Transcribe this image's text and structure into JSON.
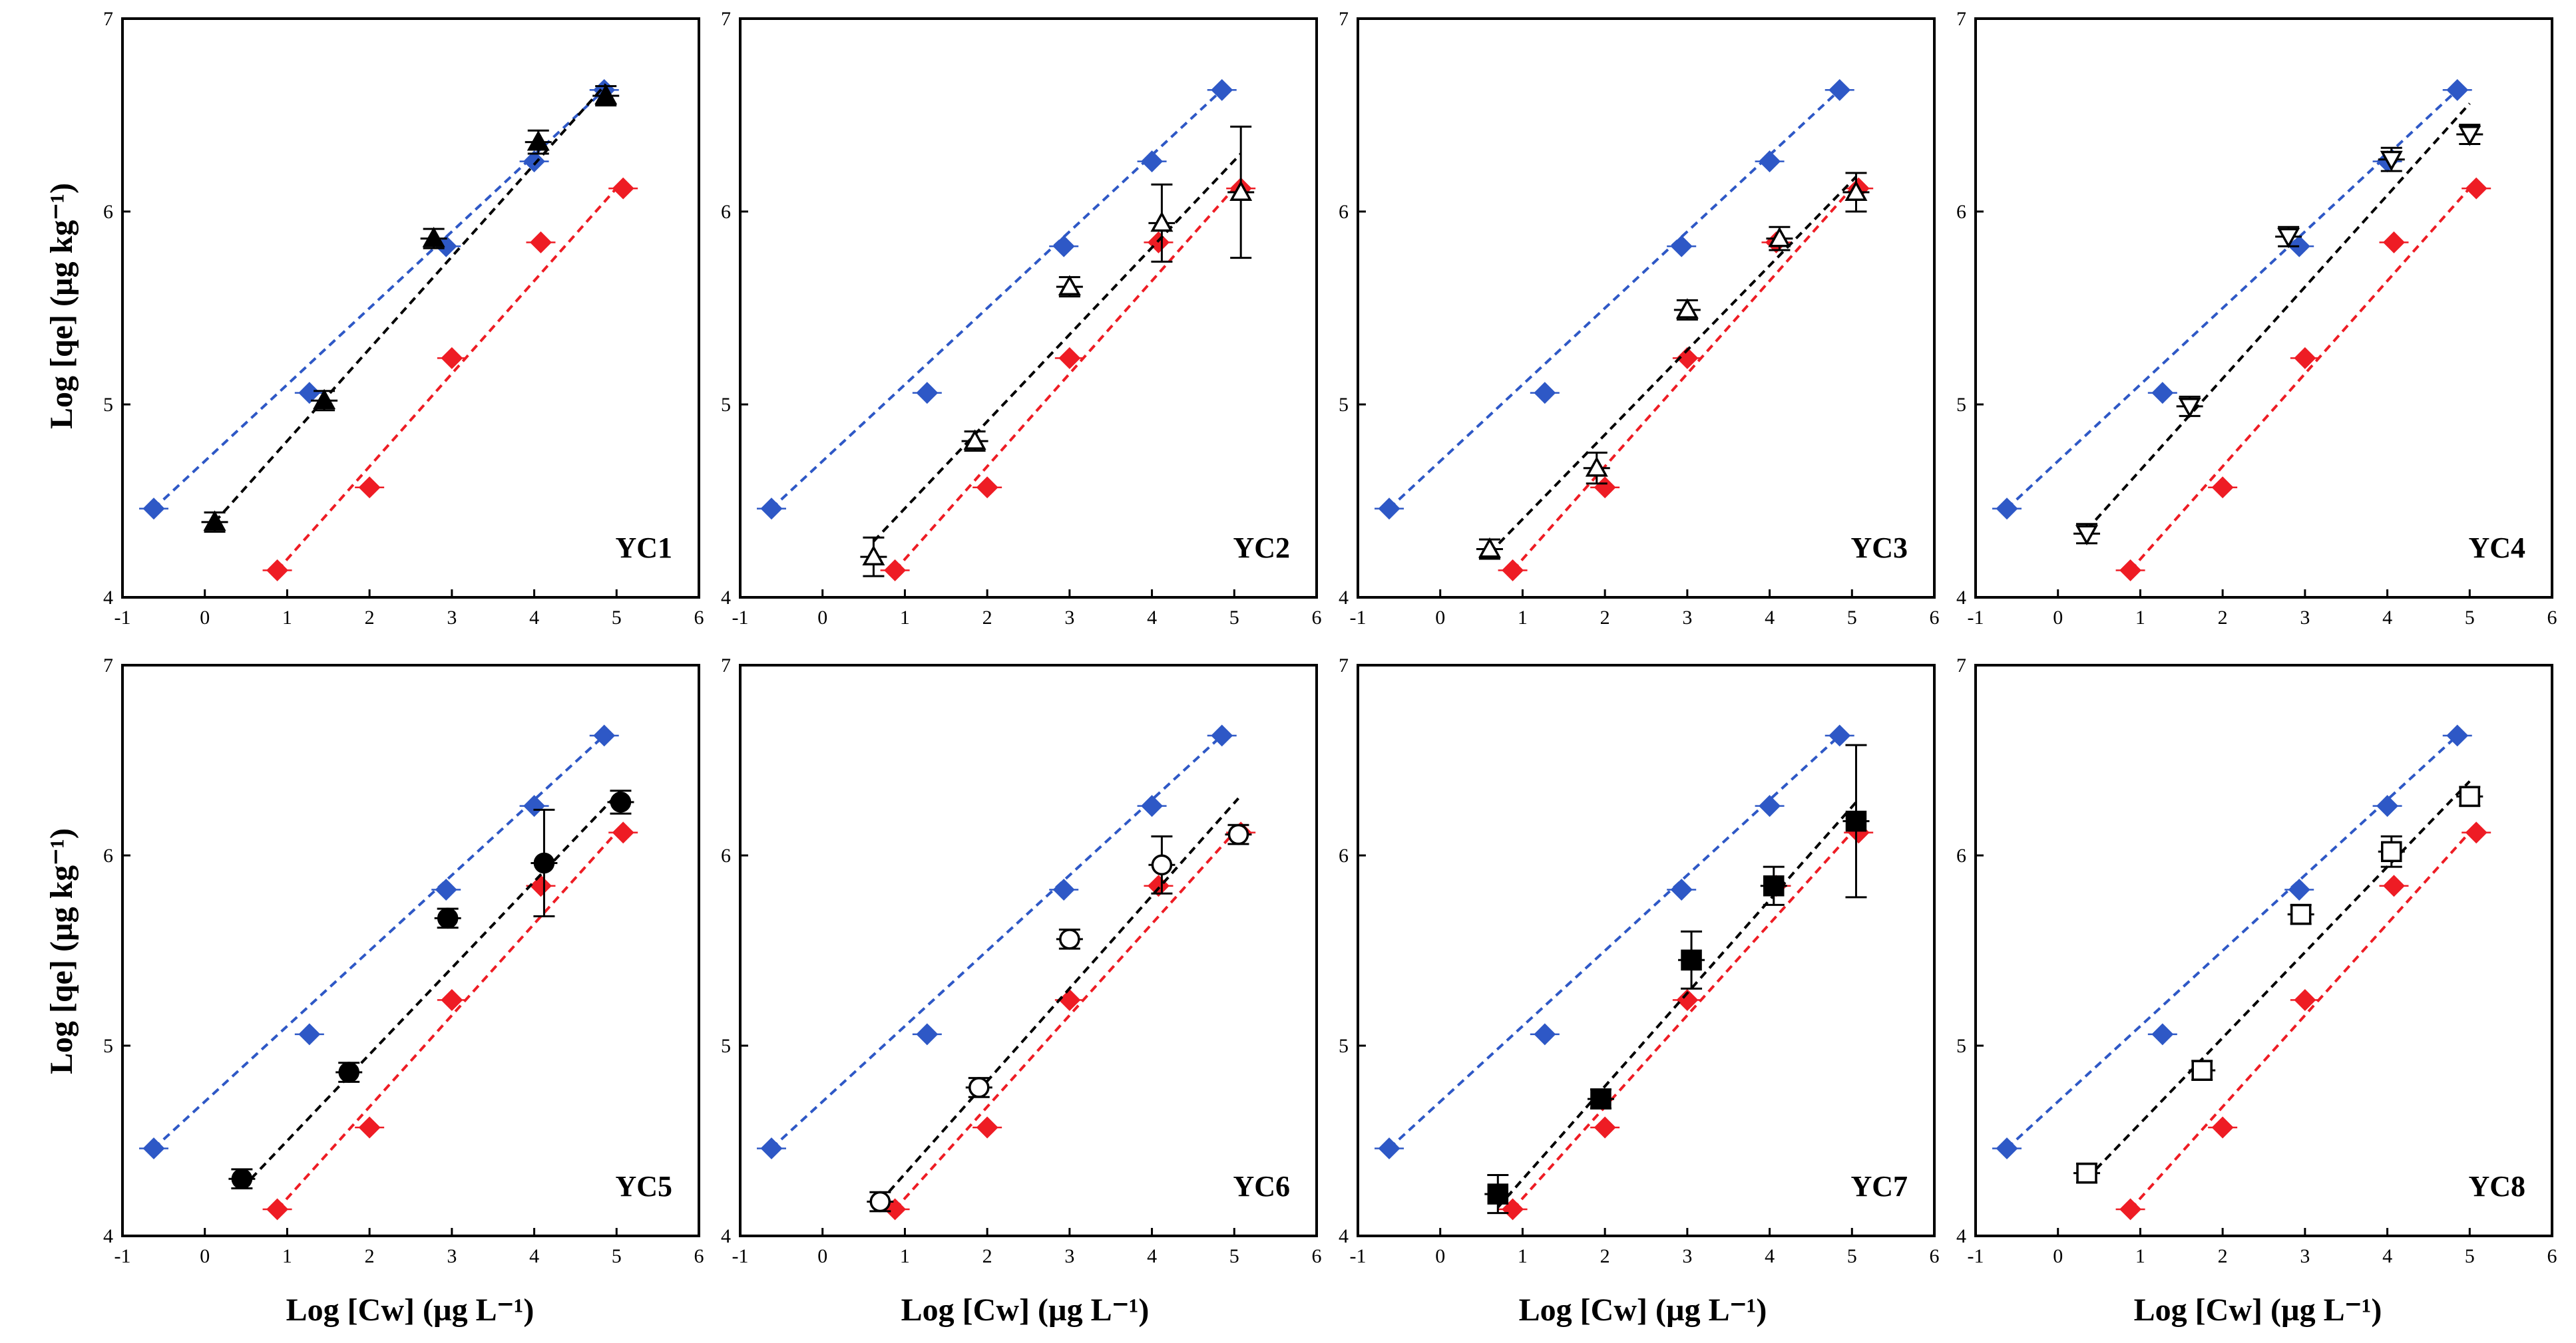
{
  "chart_data": {
    "type": "scatter",
    "xlabel": "Log [Cw]  (µg L⁻¹)",
    "ylabel": "Log [qe]  (µg kg⁻¹)",
    "x_ticks": [
      "-1",
      "0",
      "1",
      "2",
      "3",
      "4",
      "5",
      "6"
    ],
    "y_ticks": [
      "4",
      "5",
      "6",
      "7"
    ],
    "xlim": [
      -1,
      6
    ],
    "ylim": [
      4,
      7
    ],
    "colors": {
      "blue": "#2e58c6",
      "red": "#ee1c24",
      "black": "#000000"
    },
    "reference_series": [
      {
        "color": "blue",
        "marker": "diamond",
        "x": [
          -0.62,
          1.27,
          2.93,
          4.0,
          4.85
        ],
        "y": [
          4.46,
          5.06,
          5.82,
          6.26,
          6.63
        ],
        "fit": [
          [
            -0.62,
            4.46
          ],
          [
            4.85,
            6.63
          ]
        ]
      },
      {
        "color": "red",
        "marker": "diamond",
        "x": [
          0.88,
          2.0,
          3.0,
          4.08,
          5.08
        ],
        "y": [
          4.14,
          4.57,
          5.24,
          5.84,
          6.12
        ],
        "fit": [
          [
            0.88,
            4.14
          ],
          [
            5.08,
            6.16
          ]
        ]
      }
    ],
    "panels": [
      {
        "label": "YC1",
        "marker": "triangle-up-filled",
        "x": [
          0.12,
          1.45,
          2.78,
          4.05,
          4.87
        ],
        "y": [
          4.39,
          5.02,
          5.86,
          6.36,
          6.6
        ],
        "yerr": [
          0.05,
          0.05,
          0.05,
          0.06,
          0.05
        ],
        "fit": [
          [
            0.12,
            4.39
          ],
          [
            4.87,
            6.66
          ]
        ]
      },
      {
        "label": "YC2",
        "marker": "triangle-up-open",
        "x": [
          0.62,
          1.85,
          3.0,
          4.12,
          5.08
        ],
        "y": [
          4.21,
          4.81,
          5.61,
          5.94,
          6.1
        ],
        "yerr": [
          0.1,
          0.05,
          0.05,
          0.2,
          0.34
        ],
        "fit": [
          [
            0.62,
            4.29
          ],
          [
            5.08,
            6.3
          ]
        ]
      },
      {
        "label": "YC3",
        "marker": "triangle-up-open",
        "x": [
          0.6,
          1.9,
          3.0,
          4.12,
          5.05
        ],
        "y": [
          4.25,
          4.67,
          5.49,
          5.86,
          6.1
        ],
        "yerr": [
          0.05,
          0.08,
          0.05,
          0.06,
          0.1
        ],
        "fit": [
          [
            0.6,
            4.23
          ],
          [
            5.05,
            6.18
          ]
        ]
      },
      {
        "label": "YC4",
        "marker": "triangle-down-open",
        "x": [
          0.35,
          1.6,
          2.8,
          4.05,
          5.0
        ],
        "y": [
          4.33,
          4.99,
          5.87,
          6.27,
          6.4
        ],
        "yerr": [
          0.05,
          0.05,
          0.05,
          0.06,
          0.05
        ],
        "fit": [
          [
            0.35,
            4.35
          ],
          [
            5.0,
            6.56
          ]
        ]
      },
      {
        "label": "YC5",
        "marker": "circle-filled",
        "x": [
          0.45,
          1.75,
          2.95,
          4.12,
          5.05
        ],
        "y": [
          4.3,
          4.86,
          5.67,
          5.96,
          6.28
        ],
        "yerr": [
          0.05,
          0.05,
          0.05,
          0.28,
          0.06
        ],
        "fit": [
          [
            0.45,
            4.25
          ],
          [
            5.05,
            6.34
          ]
        ]
      },
      {
        "label": "YC6",
        "marker": "circle-open",
        "x": [
          0.7,
          1.9,
          3.0,
          4.12,
          5.05
        ],
        "y": [
          4.18,
          4.78,
          5.56,
          5.95,
          6.11
        ],
        "yerr": [
          0.05,
          0.05,
          0.05,
          0.15,
          0.05
        ],
        "fit": [
          [
            0.7,
            4.18
          ],
          [
            5.05,
            6.3
          ]
        ]
      },
      {
        "label": "YC7",
        "marker": "square-filled",
        "x": [
          0.7,
          1.95,
          3.05,
          4.05,
          5.05
        ],
        "y": [
          4.22,
          4.72,
          5.45,
          5.84,
          6.18
        ],
        "yerr": [
          0.1,
          0.05,
          0.15,
          0.1,
          0.4
        ],
        "fit": [
          [
            0.7,
            4.15
          ],
          [
            5.05,
            6.28
          ]
        ]
      },
      {
        "label": "YC8",
        "marker": "square-open",
        "x": [
          0.35,
          1.75,
          2.95,
          4.05,
          5.0
        ],
        "y": [
          4.33,
          4.87,
          5.69,
          6.02,
          6.31
        ],
        "yerr": [
          0.05,
          0.05,
          0.05,
          0.08,
          0.05
        ],
        "fit": [
          [
            0.35,
            4.3
          ],
          [
            5.0,
            6.39
          ]
        ]
      }
    ]
  }
}
